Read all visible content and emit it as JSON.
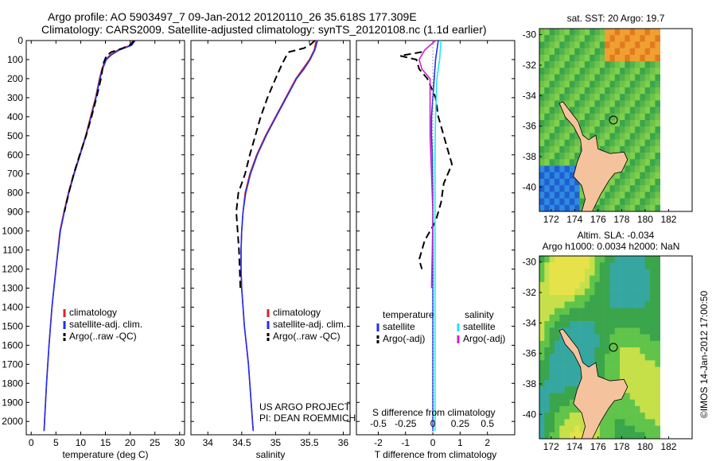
{
  "header": {
    "line1": "Argo profile: AO 5903497_7 09-Jan-2012 20120110_26 35.618S 177.309E",
    "line2": "Climatology: CARS2009. Satellite-adjusted climatology: synTS_20120108.nc (1.1d earlier)"
  },
  "colors": {
    "climatology": "#d62728",
    "satellite": "#1f2ff5",
    "argo": "#000000",
    "cyan": "#22e5ee",
    "magenta": "#d020d0",
    "land": "#f4c39d"
  },
  "chart_data": [
    {
      "type": "line",
      "panel": "temperature",
      "xlabel": "temperature (deg C)",
      "ylabel": "",
      "xlim": [
        -1,
        31
      ],
      "ylim": [
        2070,
        0
      ],
      "xticks": [
        "0",
        "5",
        "10",
        "15",
        "20",
        "25",
        "30"
      ],
      "yticks": [
        "0",
        "100",
        "200",
        "300",
        "400",
        "500",
        "600",
        "700",
        "800",
        "900",
        "1000",
        "1100",
        "1200",
        "1300",
        "1400",
        "1500",
        "1600",
        "1700",
        "1800",
        "1900",
        "2000"
      ],
      "legend": [
        "climatology",
        "satellite-adj. clim.",
        "Argo(..raw -QC)"
      ],
      "series": [
        {
          "name": "climatology",
          "style": "solid",
          "color": "#d62728",
          "points": [
            [
              20.5,
              0
            ],
            [
              20,
              25
            ],
            [
              17.5,
              50
            ],
            [
              16,
              75
            ],
            [
              15,
              100
            ],
            [
              14.3,
              150
            ],
            [
              13.8,
              200
            ],
            [
              13.0,
              300
            ],
            [
              12.0,
              400
            ],
            [
              11.0,
              500
            ],
            [
              9.8,
              600
            ],
            [
              8.6,
              700
            ],
            [
              7.5,
              800
            ],
            [
              6.6,
              900
            ],
            [
              5.8,
              1000
            ],
            [
              5.0,
              1200
            ],
            [
              4.2,
              1400
            ],
            [
              3.6,
              1600
            ],
            [
              3.1,
              1800
            ],
            [
              2.7,
              2000
            ],
            [
              2.6,
              2050
            ]
          ]
        },
        {
          "name": "satellite-adj. clim.",
          "style": "solid",
          "color": "#1f2ff5",
          "points": [
            [
              21,
              0
            ],
            [
              20.3,
              25
            ],
            [
              17.8,
              50
            ],
            [
              16.2,
              75
            ],
            [
              15.2,
              100
            ],
            [
              14.4,
              150
            ],
            [
              13.9,
              200
            ],
            [
              13.1,
              300
            ],
            [
              12.1,
              400
            ],
            [
              11.1,
              500
            ],
            [
              9.9,
              600
            ],
            [
              8.7,
              700
            ],
            [
              7.6,
              800
            ],
            [
              6.7,
              900
            ],
            [
              5.9,
              1000
            ],
            [
              5.0,
              1200
            ],
            [
              4.2,
              1400
            ],
            [
              3.6,
              1600
            ],
            [
              3.1,
              1800
            ],
            [
              2.7,
              2000
            ],
            [
              2.6,
              2050
            ]
          ]
        },
        {
          "name": "Argo(..raw -QC)",
          "style": "dash",
          "color": "#000000",
          "points": [
            [
              20.8,
              0
            ],
            [
              20.2,
              20
            ],
            [
              18.5,
              40
            ],
            [
              16.2,
              60
            ],
            [
              15.2,
              80
            ],
            [
              14.6,
              120
            ],
            [
              14.1,
              200
            ],
            [
              13.2,
              300
            ],
            [
              12.2,
              400
            ],
            [
              11.1,
              500
            ],
            [
              9.8,
              600
            ],
            [
              8.6,
              700
            ],
            [
              7.6,
              800
            ],
            [
              6.7,
              900
            ]
          ]
        }
      ]
    },
    {
      "type": "line",
      "panel": "salinity",
      "xlabel": "salinity",
      "ylabel": "",
      "xlim": [
        33.75,
        36.1
      ],
      "ylim": [
        2070,
        0
      ],
      "xticks": [
        "34",
        "34.5",
        "35",
        "35.5",
        "36"
      ],
      "legend": [
        "climatology",
        "satellite-adj. clim.",
        "Argo(..raw -QC)"
      ],
      "annotation": [
        "US ARGO PROJECT",
        "PI: DEAN ROEMMICH"
      ],
      "series": [
        {
          "name": "climatology",
          "style": "solid",
          "color": "#d62728",
          "points": [
            [
              35.6,
              0
            ],
            [
              35.57,
              50
            ],
            [
              35.5,
              100
            ],
            [
              35.4,
              150
            ],
            [
              35.3,
              200
            ],
            [
              35.15,
              300
            ],
            [
              35.0,
              400
            ],
            [
              34.85,
              500
            ],
            [
              34.72,
              600
            ],
            [
              34.62,
              700
            ],
            [
              34.55,
              800
            ],
            [
              34.52,
              900
            ],
            [
              34.5,
              1000
            ],
            [
              34.49,
              1100
            ],
            [
              34.49,
              1200
            ],
            [
              34.5,
              1300
            ],
            [
              34.52,
              1400
            ],
            [
              34.54,
              1500
            ],
            [
              34.57,
              1600
            ],
            [
              34.6,
              1700
            ],
            [
              34.62,
              1800
            ],
            [
              34.64,
              1900
            ],
            [
              34.66,
              2000
            ],
            [
              34.67,
              2050
            ]
          ]
        },
        {
          "name": "satellite-adj. clim.",
          "style": "solid",
          "color": "#1f2ff5",
          "points": [
            [
              35.62,
              0
            ],
            [
              35.58,
              50
            ],
            [
              35.51,
              100
            ],
            [
              35.42,
              150
            ],
            [
              35.31,
              200
            ],
            [
              35.16,
              300
            ],
            [
              35.01,
              400
            ],
            [
              34.86,
              500
            ],
            [
              34.73,
              600
            ],
            [
              34.63,
              700
            ],
            [
              34.56,
              800
            ],
            [
              34.52,
              900
            ],
            [
              34.5,
              1000
            ],
            [
              34.49,
              1100
            ],
            [
              34.49,
              1200
            ],
            [
              34.5,
              1300
            ],
            [
              34.52,
              1400
            ],
            [
              34.54,
              1500
            ],
            [
              34.57,
              1600
            ],
            [
              34.6,
              1700
            ],
            [
              34.62,
              1800
            ],
            [
              34.64,
              1900
            ],
            [
              34.66,
              2000
            ],
            [
              34.67,
              2050
            ]
          ]
        },
        {
          "name": "Argo(..raw -QC)",
          "style": "dash",
          "color": "#000000",
          "points": [
            [
              35.58,
              0
            ],
            [
              35.52,
              20
            ],
            [
              35.42,
              40
            ],
            [
              35.2,
              60
            ],
            [
              35.16,
              80
            ],
            [
              35.1,
              120
            ],
            [
              35.0,
              200
            ],
            [
              34.88,
              300
            ],
            [
              34.78,
              400
            ],
            [
              34.7,
              500
            ],
            [
              34.62,
              600
            ],
            [
              34.55,
              700
            ],
            [
              34.45,
              800
            ],
            [
              34.42,
              900
            ],
            [
              34.44,
              1000
            ],
            [
              34.46,
              1100
            ],
            [
              34.47,
              1200
            ],
            [
              34.48,
              1300
            ]
          ]
        }
      ]
    },
    {
      "type": "line",
      "panel": "difference",
      "xlabel": "T difference from climatology",
      "xlabel_top": "S difference from climatology",
      "xlim": [
        -2.8,
        3.0
      ],
      "ylim": [
        2070,
        0
      ],
      "xticks_bottom": [
        "-2",
        "-1",
        "0",
        "1",
        "2"
      ],
      "xticks_top": [
        "-0.5",
        "-0.25",
        "0",
        "0.25",
        "0.5"
      ],
      "legend_temperature": {
        "title": "temperature",
        "items": [
          "satellite",
          "Argo(-adj)"
        ]
      },
      "legend_salinity": {
        "title": "salinity",
        "items": [
          "satellite",
          "Argo(-adj)"
        ]
      },
      "series": [
        {
          "name": "temperature satellite",
          "style": "solid",
          "color": "#1f2ff5",
          "points": [
            [
              0.2,
              0
            ],
            [
              0.15,
              50
            ],
            [
              0.1,
              100
            ],
            [
              0.05,
              200
            ],
            [
              0.0,
              300
            ],
            [
              -0.05,
              400
            ],
            [
              -0.05,
              500
            ],
            [
              -0.02,
              600
            ],
            [
              0.0,
              800
            ],
            [
              0.0,
              1000
            ],
            [
              0.0,
              2050
            ]
          ]
        },
        {
          "name": "temperature Argo(-adj)",
          "style": "dash",
          "color": "#000000",
          "points": [
            [
              -0.4,
              60
            ],
            [
              -1.2,
              80
            ],
            [
              -0.6,
              100
            ],
            [
              -0.5,
              150
            ],
            [
              -0.2,
              200
            ],
            [
              0.1,
              300
            ],
            [
              0.2,
              400
            ],
            [
              0.3,
              450
            ],
            [
              0.5,
              550
            ],
            [
              0.7,
              650
            ],
            [
              0.4,
              750
            ],
            [
              0.3,
              850
            ],
            [
              0.1,
              950
            ],
            [
              -0.3,
              1050
            ],
            [
              -0.5,
              1150
            ],
            [
              -0.4,
              1200
            ]
          ]
        },
        {
          "name": "salinity satellite",
          "style": "solid",
          "color": "#22e5ee",
          "points": [
            [
              0.3,
              0
            ],
            [
              0.25,
              100
            ],
            [
              0.15,
              200
            ],
            [
              0.1,
              400
            ],
            [
              0.08,
              600
            ],
            [
              0.08,
              800
            ],
            [
              0.08,
              1000
            ],
            [
              0.08,
              1200
            ],
            [
              0.08,
              1400
            ],
            [
              0.08,
              1600
            ],
            [
              0.08,
              1800
            ],
            [
              0.08,
              2050
            ]
          ]
        },
        {
          "name": "salinity Argo(-adj)",
          "style": "solid",
          "color": "#d020d0",
          "points": [
            [
              0.1,
              0
            ],
            [
              -0.3,
              50
            ],
            [
              -0.5,
              100
            ],
            [
              -0.4,
              150
            ],
            [
              -0.1,
              200
            ],
            [
              -0.1,
              300
            ],
            [
              -0.1,
              500
            ],
            [
              -0.05,
              700
            ],
            [
              0.0,
              900
            ],
            [
              -0.02,
              1100
            ],
            [
              -0.05,
              1300
            ]
          ]
        }
      ]
    }
  ],
  "maps": {
    "sst": {
      "title": "sat. SST: 20 Argo: 19.7",
      "yticks": [
        "-30",
        "-32",
        "-34",
        "-36",
        "-38",
        "-40"
      ],
      "xticks": [
        "172",
        "174",
        "176",
        "178",
        "180",
        "182"
      ]
    },
    "sla": {
      "title_line1": "Altim. SLA: -0.034",
      "title_line2": "Argo h1000: 0.0034 h2000: NaN",
      "yticks": [
        "-30",
        "-32",
        "-34",
        "-36",
        "-38",
        "-40"
      ],
      "xticks": [
        "172",
        "174",
        "176",
        "178",
        "180",
        "182"
      ]
    },
    "float_position": {
      "lon": 177.3,
      "lat": -35.6
    },
    "credit": "©IMOS 14-Jan-2012 17:00:50"
  }
}
